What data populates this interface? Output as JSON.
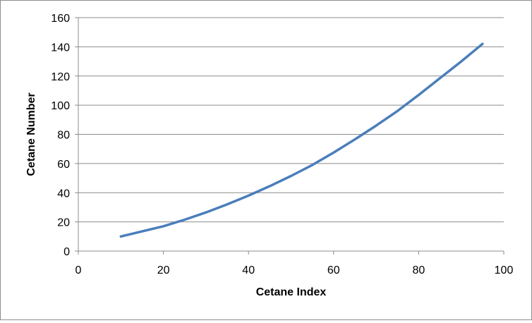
{
  "chart_data": {
    "type": "line",
    "xlabel": "Cetane Index",
    "ylabel": "Cetane Number",
    "xlim": [
      0,
      100
    ],
    "ylim": [
      0,
      160
    ],
    "xticks": [
      0,
      20,
      40,
      60,
      80,
      100
    ],
    "yticks": [
      0,
      20,
      40,
      60,
      80,
      100,
      120,
      140,
      160
    ],
    "grid": "horizontal",
    "legend": "none",
    "series": [
      {
        "color": "#4a7ebb",
        "x": [
          10,
          15,
          20,
          25,
          30,
          35,
          40,
          45,
          50,
          55,
          60,
          65,
          70,
          75,
          80,
          85,
          90,
          95
        ],
        "y": [
          10,
          13.5,
          17,
          21.5,
          26.5,
          32,
          38,
          44.5,
          51.5,
          59,
          67.5,
          76.5,
          86,
          96,
          107,
          118.5,
          130,
          142
        ]
      }
    ]
  }
}
